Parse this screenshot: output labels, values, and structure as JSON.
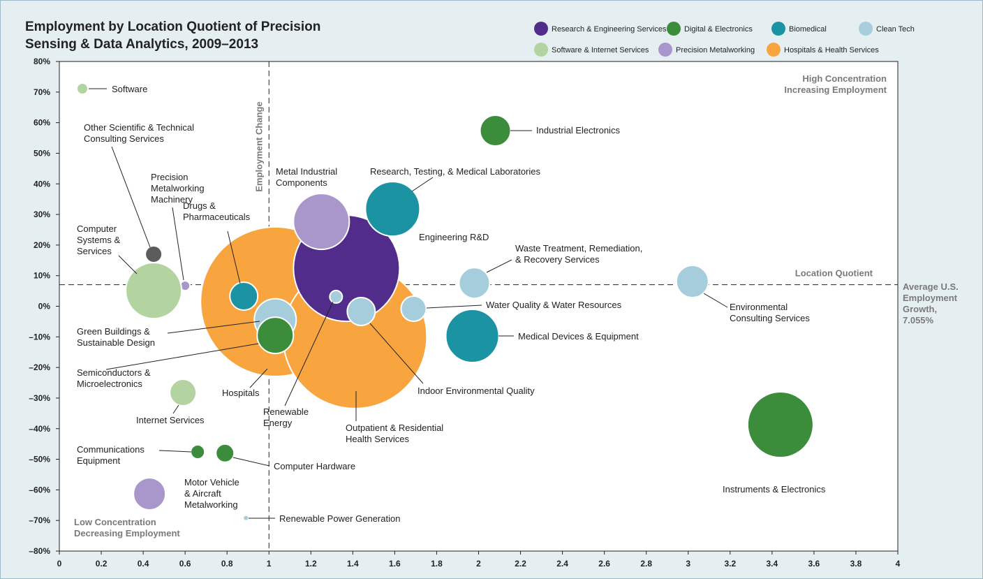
{
  "chart_data": {
    "type": "bubble",
    "title": [
      "Employment by Location Quotient of Precision",
      "Sensing & Data Analytics, 2009–2013"
    ],
    "xlim": [
      0,
      4
    ],
    "ylim": [
      -80,
      80
    ],
    "xticks": [
      0,
      0.2,
      0.4,
      0.6,
      0.8,
      1,
      1.2,
      1.4,
      1.6,
      1.8,
      2,
      2.2,
      2.4,
      2.6,
      2.8,
      3,
      3.2,
      3.4,
      3.6,
      3.8,
      4
    ],
    "yticks": [
      {
        "value": -80,
        "label": "–80%"
      },
      {
        "value": -70,
        "label": "–70%"
      },
      {
        "value": -60,
        "label": "–60%"
      },
      {
        "value": -50,
        "label": "–50%"
      },
      {
        "value": -40,
        "label": "–40%"
      },
      {
        "value": -30,
        "label": "–30%"
      },
      {
        "value": -20,
        "label": "–20%"
      },
      {
        "value": -10,
        "label": "–10%"
      },
      {
        "value": 0,
        "label": "0%"
      },
      {
        "value": 10,
        "label": "10%"
      },
      {
        "value": 20,
        "label": "20%"
      },
      {
        "value": 30,
        "label": "30%"
      },
      {
        "value": 40,
        "label": "40%"
      },
      {
        "value": 50,
        "label": "50%"
      },
      {
        "value": 60,
        "label": "60%"
      },
      {
        "value": 70,
        "label": "70%"
      },
      {
        "value": 80,
        "label": "80%"
      }
    ],
    "vline": {
      "value": 1,
      "label": "Employment Change"
    },
    "hline": {
      "value": 7.055,
      "label": "Location Quotient"
    },
    "annotations": {
      "top_right": [
        "High Concentration",
        "Increasing Employment"
      ],
      "bottom_left": [
        "Low Concentration",
        "Decreasing Employment"
      ],
      "right": [
        "Average U.S.",
        "Employment",
        "Growth,",
        "7.055%"
      ]
    },
    "series": [
      {
        "name": "Research & Engineering Services",
        "color": "#522c8b",
        "x": [
          1.37
        ],
        "values": [
          12.4
        ],
        "sizes": [
          76
        ],
        "labels": [
          [
            "Engineering R&D"
          ]
        ]
      },
      {
        "name": "Digital & Electronics",
        "color": "#3b8c3b",
        "x": [
          2.08,
          1.03,
          0.66,
          0.79,
          3.44
        ],
        "values": [
          57.4,
          -9.5,
          -47.6,
          -48,
          -38.7
        ],
        "sizes": [
          22,
          26,
          10,
          13,
          47
        ],
        "labels": [
          [
            "Industrial Electronics"
          ],
          [
            "Semiconductors &",
            "Microelectronics"
          ],
          [
            "Communications",
            "Equipment"
          ],
          [
            "Computer Hardware"
          ],
          [
            "Instruments & Electronics"
          ]
        ]
      },
      {
        "name": "Biomedical",
        "color": "#1c93a3",
        "x": [
          1.59,
          0.88,
          1.97
        ],
        "values": [
          31.8,
          3.3,
          -9.7
        ],
        "sizes": [
          39,
          20,
          38
        ],
        "labels": [
          [
            "Research, Testing, & Medical Laboratories"
          ],
          [
            "Drugs &",
            "Pharmaceuticals"
          ],
          [
            "Medical Devices & Equipment"
          ]
        ]
      },
      {
        "name": "Clean Tech",
        "color": "#a6cddc",
        "x": [
          1.03,
          1.32,
          1.44,
          1.69,
          1.98,
          3.02,
          0.89
        ],
        "values": [
          -4.4,
          3.1,
          -1.7,
          -0.8,
          7.6,
          8.1,
          -69.2
        ],
        "sizes": [
          30,
          9,
          20,
          18,
          22,
          23,
          4
        ],
        "labels": [
          [
            "Green Buildings &",
            "Sustainable Design"
          ],
          [
            "Renewable",
            "Energy"
          ],
          [
            "Indoor Environmental Quality"
          ],
          [
            "Water Quality & Water Resources"
          ],
          [
            "Waste Treatment, Remediation,",
            "& Recovery Services"
          ],
          [
            "Environmental",
            "Consulting Services"
          ],
          [
            "Renewable Power Generation"
          ]
        ]
      },
      {
        "name": "Software & Internet Services",
        "color": "#b3d4a0",
        "x": [
          0.11,
          0.45,
          0.59
        ],
        "values": [
          71.1,
          5.1,
          -28.2
        ],
        "sizes": [
          8,
          40,
          19
        ],
        "labels": [
          [
            "Software"
          ],
          [
            "Computer",
            "Systems &",
            "Services"
          ],
          [
            "Internet Services"
          ]
        ]
      },
      {
        "name": "Precision Metalworking",
        "color": "#a996ca",
        "x": [
          1.25,
          0.6,
          0.43
        ],
        "values": [
          27.7,
          6.7,
          -61.3
        ],
        "sizes": [
          40,
          7,
          23
        ],
        "labels": [
          [
            "Metal Industrial",
            "Components"
          ],
          [
            "Precision",
            "Metalworking",
            "Machinery"
          ],
          [
            "Motor Vehicle",
            "& Aircraft",
            "Metalworking"
          ]
        ]
      },
      {
        "name": "Hospitals & Health Services",
        "color": "#f8a540",
        "x": [
          1.03,
          1.41
        ],
        "values": [
          1.5,
          -9.9
        ],
        "sizes": [
          107,
          103
        ],
        "labels": [
          [
            "Hospitals"
          ],
          [
            "Outpatient & Residential",
            "Health Services"
          ]
        ]
      },
      {
        "color": "#5c5c5e",
        "x": [
          0.45
        ],
        "values": [
          17
        ],
        "sizes": [
          12
        ],
        "labels": [
          [
            "Other Scientific & Technical",
            "Consulting Services"
          ]
        ]
      }
    ]
  }
}
